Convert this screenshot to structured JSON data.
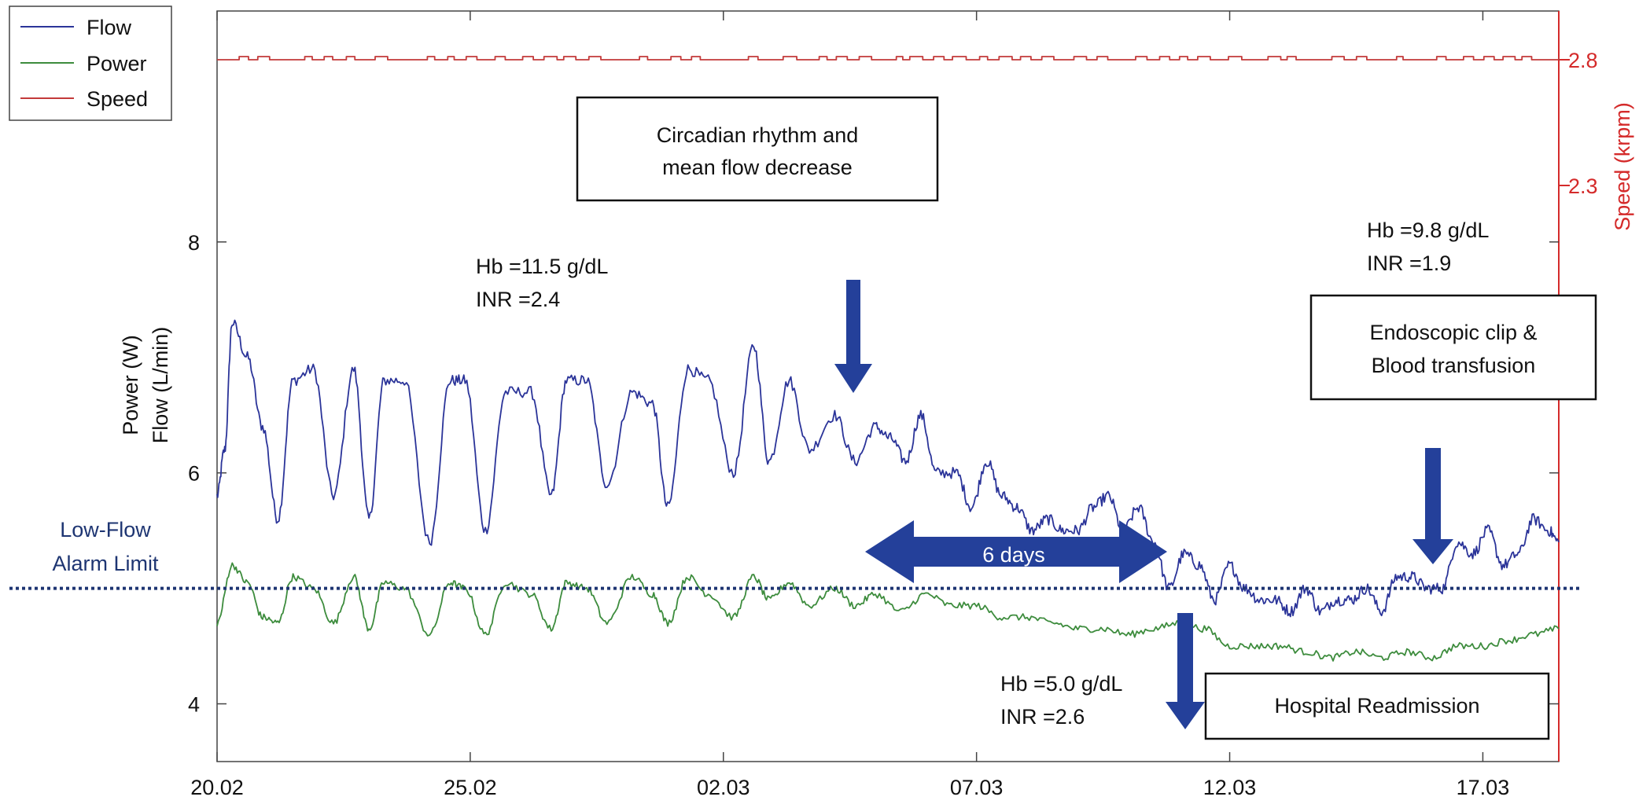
{
  "chart_data": {
    "type": "line",
    "xaxis": {
      "ticks": [
        "20.02",
        "25.02",
        "02.03",
        "07.03",
        "12.03",
        "17.03"
      ],
      "tick_days": [
        0,
        5,
        10,
        15,
        20,
        25
      ],
      "range_days": [
        0,
        26.5
      ]
    },
    "yaxis_left": {
      "label_lines": [
        "Power (W)",
        "Flow (L/min)"
      ],
      "ticks": [
        "4",
        "6",
        "8"
      ],
      "range": [
        3.5,
        10.0
      ]
    },
    "yaxis_right": {
      "label": "Speed (krpm)",
      "ticks": [
        "2.3",
        "2.8"
      ],
      "tick_values": [
        2.3,
        2.8
      ],
      "color": "#d42a2a"
    },
    "legend": {
      "position": "top-left",
      "entries": [
        "Flow",
        "Power",
        "Speed"
      ]
    },
    "series": [
      {
        "name": "Flow",
        "color": "#2b3499",
        "axis": "left",
        "x": [
          0,
          0.15,
          0.3,
          0.6,
          0.9,
          1.2,
          1.5,
          1.9,
          2.3,
          2.7,
          3.0,
          3.3,
          3.7,
          4.2,
          4.6,
          4.9,
          5.3,
          5.7,
          6.2,
          6.6,
          6.9,
          7.3,
          7.7,
          8.2,
          8.6,
          8.9,
          9.3,
          9.7,
          10.2,
          10.6,
          10.9,
          11.3,
          11.7,
          12.2,
          12.6,
          13.0,
          13.3,
          13.6,
          13.9,
          14.2,
          14.6,
          14.9,
          15.2,
          15.5,
          15.8,
          16.1,
          16.4,
          16.7,
          17.0,
          17.3,
          17.6,
          17.9,
          18.2,
          18.5,
          18.8,
          19.1,
          19.4,
          19.7,
          20.0,
          20.3,
          20.6,
          20.9,
          21.2,
          21.5,
          21.8,
          22.1,
          22.4,
          22.7,
          23.0,
          23.3,
          23.6,
          23.9,
          24.2,
          24.5,
          24.8,
          25.1,
          25.4,
          25.7,
          26.0,
          26.3,
          26.5
        ],
        "y": [
          5.8,
          6.2,
          7.3,
          7.0,
          6.4,
          5.6,
          6.8,
          6.9,
          5.8,
          6.9,
          5.6,
          6.8,
          6.8,
          5.4,
          6.8,
          6.8,
          5.5,
          6.7,
          6.7,
          5.8,
          6.8,
          6.8,
          5.9,
          6.7,
          6.6,
          5.7,
          6.9,
          6.8,
          6.0,
          7.1,
          6.1,
          6.8,
          6.2,
          6.5,
          6.1,
          6.4,
          6.3,
          6.1,
          6.5,
          6.0,
          6.0,
          5.7,
          6.1,
          5.8,
          5.7,
          5.5,
          5.6,
          5.5,
          5.5,
          5.7,
          5.8,
          5.5,
          5.7,
          5.4,
          5.0,
          5.3,
          5.2,
          4.9,
          5.2,
          5.0,
          4.9,
          4.9,
          4.8,
          5.0,
          4.8,
          4.9,
          4.9,
          5.0,
          4.8,
          5.1,
          5.1,
          5.0,
          5.0,
          5.4,
          5.3,
          5.5,
          5.2,
          5.3,
          5.6,
          5.5,
          5.4
        ]
      },
      {
        "name": "Power",
        "color": "#3d8c3d",
        "axis": "left",
        "x": [
          0,
          0.3,
          0.6,
          0.9,
          1.2,
          1.5,
          1.9,
          2.3,
          2.7,
          3.0,
          3.3,
          3.7,
          4.2,
          4.6,
          4.9,
          5.3,
          5.7,
          6.2,
          6.6,
          6.9,
          7.3,
          7.7,
          8.2,
          8.6,
          8.9,
          9.3,
          9.7,
          10.2,
          10.6,
          10.9,
          11.3,
          11.7,
          12.2,
          12.6,
          13.0,
          13.5,
          14.0,
          14.5,
          15.0,
          15.5,
          16.0,
          16.5,
          17.0,
          17.5,
          18.0,
          18.5,
          19.0,
          19.5,
          20.0,
          20.5,
          21.0,
          21.5,
          22.0,
          22.5,
          23.0,
          23.5,
          24.0,
          24.5,
          25.0,
          25.5,
          26.0,
          26.5
        ],
        "y": [
          4.7,
          5.2,
          5.05,
          4.75,
          4.7,
          5.1,
          5.0,
          4.7,
          5.1,
          4.65,
          5.05,
          5.0,
          4.6,
          5.05,
          5.0,
          4.6,
          5.05,
          4.95,
          4.65,
          5.05,
          5.0,
          4.7,
          5.1,
          4.95,
          4.7,
          5.1,
          4.95,
          4.75,
          5.1,
          4.9,
          5.05,
          4.85,
          5.0,
          4.85,
          4.95,
          4.8,
          4.95,
          4.85,
          4.85,
          4.75,
          4.75,
          4.7,
          4.65,
          4.65,
          4.6,
          4.65,
          4.7,
          4.65,
          4.5,
          4.5,
          4.5,
          4.45,
          4.4,
          4.45,
          4.4,
          4.45,
          4.4,
          4.5,
          4.5,
          4.55,
          4.6,
          4.65
        ]
      },
      {
        "name": "Speed",
        "color": "#c33a3a",
        "axis": "right",
        "x": [
          0,
          26.5
        ],
        "y": [
          2.8,
          2.8
        ]
      }
    ],
    "reference_line": {
      "value": 5.0,
      "label_lines": [
        "Low-Flow",
        "Alarm Limit"
      ],
      "color": "#1e3572"
    },
    "annotations": [
      {
        "id": "circadian",
        "lines": [
          "Circadian rhythm and",
          "mean flow decrease"
        ]
      },
      {
        "id": "endoscopic",
        "lines": [
          "Endoscopic clip &",
          "Blood transfusion"
        ]
      },
      {
        "id": "readmission",
        "lines": [
          "Hospital Readmission"
        ]
      },
      {
        "id": "lab1",
        "lines": [
          "Hb =11.5 g/dL",
          "INR =2.4"
        ]
      },
      {
        "id": "lab2",
        "lines": [
          "Hb =9.8 g/dL",
          "INR =1.9"
        ]
      },
      {
        "id": "lab3",
        "lines": [
          "Hb =5.0 g/dL",
          "INR =2.6"
        ]
      },
      {
        "id": "duration",
        "lines": [
          "6 days"
        ]
      }
    ],
    "arrow_color": "#24409a"
  }
}
